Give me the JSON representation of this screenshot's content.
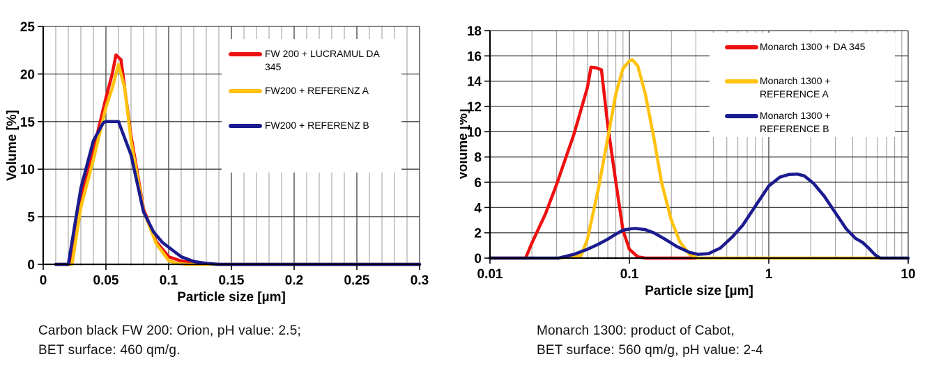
{
  "figures": [
    {
      "id": "fw200",
      "caption_lines": [
        "Carbon black FW 200: Orion, pH value: 2.5;",
        "BET surface: 460 qm/g."
      ]
    },
    {
      "id": "monarch1300",
      "caption_lines": [
        "Monarch 1300: product of Cabot,",
        "BET surface: 560 qm/g, pH value: 2-4"
      ]
    }
  ],
  "colors": {
    "series_red": "#ee1111",
    "series_yellow": "#ffc20e",
    "series_navy": "#1b1b8f",
    "grid_major": "#404040",
    "grid_minor": "#999999",
    "axis": "#000000"
  },
  "chart_data": [
    {
      "type": "line",
      "title": "",
      "xlabel": "Particle size [µm]",
      "ylabel": "Volume [%]",
      "xscale": "linear",
      "xlim": [
        0,
        0.3
      ],
      "ylim": [
        0,
        25
      ],
      "grid": true,
      "legend_position": "upper-right-inside",
      "x_major_ticks": [
        0,
        0.05,
        0.1,
        0.15,
        0.2,
        0.25,
        0.3
      ],
      "x_tick_labels": [
        "0",
        "0.05",
        "0.1",
        "0.15",
        "0.2",
        "0.25",
        "0.3"
      ],
      "x_minor_step": 0.01,
      "y_major_step": 5,
      "series": [
        {
          "name": "FW 200 + LUCRAMUL DA 345",
          "label_lines": [
            "FW 200 + LUCRAMUL DA",
            "345"
          ],
          "color": "#ee1111",
          "points": [
            [
              0.01,
              0
            ],
            [
              0.021,
              0
            ],
            [
              0.03,
              7
            ],
            [
              0.04,
              12
            ],
            [
              0.05,
              17.5
            ],
            [
              0.055,
              20
            ],
            [
              0.058,
              22
            ],
            [
              0.062,
              21.5
            ],
            [
              0.07,
              13.5
            ],
            [
              0.08,
              5.8
            ],
            [
              0.09,
              2.4
            ],
            [
              0.1,
              0.8
            ],
            [
              0.11,
              0.35
            ],
            [
              0.12,
              0.15
            ],
            [
              0.13,
              0.05
            ],
            [
              0.14,
              0
            ],
            [
              0.3,
              0
            ]
          ]
        },
        {
          "name": "FW200 + REFERENZ A",
          "label_lines": [
            "FW200 + REFERENZ A"
          ],
          "color": "#ffc20e",
          "points": [
            [
              0.01,
              0
            ],
            [
              0.023,
              0
            ],
            [
              0.03,
              6
            ],
            [
              0.04,
              11
            ],
            [
              0.05,
              16.5
            ],
            [
              0.055,
              18.5
            ],
            [
              0.06,
              21
            ],
            [
              0.065,
              18.5
            ],
            [
              0.07,
              13
            ],
            [
              0.08,
              5.6
            ],
            [
              0.09,
              2.2
            ],
            [
              0.1,
              0.4
            ],
            [
              0.107,
              0.1
            ],
            [
              0.115,
              0
            ],
            [
              0.3,
              0
            ]
          ]
        },
        {
          "name": "FW200 + REFERENZ B",
          "label_lines": [
            "FW200 + REFERENZ B"
          ],
          "color": "#1b1b8f",
          "points": [
            [
              0.01,
              0
            ],
            [
              0.02,
              0
            ],
            [
              0.03,
              8
            ],
            [
              0.04,
              13
            ],
            [
              0.048,
              14.9
            ],
            [
              0.05,
              15
            ],
            [
              0.06,
              15
            ],
            [
              0.07,
              11.5
            ],
            [
              0.08,
              5.5
            ],
            [
              0.088,
              3.4
            ],
            [
              0.095,
              2.3
            ],
            [
              0.1,
              1.8
            ],
            [
              0.11,
              0.8
            ],
            [
              0.12,
              0.3
            ],
            [
              0.13,
              0.1
            ],
            [
              0.14,
              0
            ],
            [
              0.3,
              0
            ]
          ]
        }
      ]
    },
    {
      "type": "line",
      "title": "",
      "xlabel": "Particle size [µm]",
      "ylabel": "Volume [%]",
      "xscale": "log",
      "xlim": [
        0.01,
        10
      ],
      "ylim": [
        0,
        18
      ],
      "grid": true,
      "legend_position": "upper-right-inside",
      "x_major_ticks": [
        0.01,
        0.1,
        1,
        10
      ],
      "x_tick_labels": [
        "0.01",
        "0.1",
        "1",
        "10"
      ],
      "y_major_step": 2,
      "series": [
        {
          "name": "Monarch 1300 + DA 345",
          "label_lines": [
            "Monarch 1300 + DA 345"
          ],
          "color": "#ee1111",
          "points": [
            [
              0.01,
              0
            ],
            [
              0.018,
              0
            ],
            [
              0.02,
              1.2
            ],
            [
              0.025,
              3.5
            ],
            [
              0.03,
              5.8
            ],
            [
              0.04,
              9.8
            ],
            [
              0.05,
              13.5
            ],
            [
              0.053,
              15.1
            ],
            [
              0.058,
              15.05
            ],
            [
              0.063,
              14.9
            ],
            [
              0.07,
              10.5
            ],
            [
              0.08,
              6
            ],
            [
              0.09,
              2.2
            ],
            [
              0.1,
              0.7
            ],
            [
              0.115,
              0.1
            ],
            [
              0.13,
              0
            ],
            [
              0.3,
              0
            ]
          ]
        },
        {
          "name": "Monarch 1300 + REFERENCE A",
          "label_lines": [
            "Monarch 1300 +",
            "REFERENCE A"
          ],
          "color": "#ffc20e",
          "points": [
            [
              0.031,
              0
            ],
            [
              0.045,
              0.2
            ],
            [
              0.05,
              1.5
            ],
            [
              0.06,
              5.5
            ],
            [
              0.07,
              9.5
            ],
            [
              0.08,
              13
            ],
            [
              0.09,
              15
            ],
            [
              0.1,
              15.6
            ],
            [
              0.105,
              15.7
            ],
            [
              0.115,
              15.2
            ],
            [
              0.13,
              13
            ],
            [
              0.15,
              9.5
            ],
            [
              0.17,
              6
            ],
            [
              0.2,
              3
            ],
            [
              0.23,
              1.3
            ],
            [
              0.27,
              0.3
            ],
            [
              0.31,
              0
            ],
            [
              6.3,
              0
            ]
          ]
        },
        {
          "name": "Monarch 1300 + REFERENCE B",
          "label_lines": [
            "Monarch 1300 +",
            "REFERENCE B"
          ],
          "color": "#1b1b8f",
          "points": [
            [
              0.01,
              0
            ],
            [
              0.031,
              0
            ],
            [
              0.04,
              0.3
            ],
            [
              0.05,
              0.7
            ],
            [
              0.06,
              1.1
            ],
            [
              0.07,
              1.5
            ],
            [
              0.08,
              1.9
            ],
            [
              0.09,
              2.2
            ],
            [
              0.1,
              2.3
            ],
            [
              0.11,
              2.35
            ],
            [
              0.13,
              2.25
            ],
            [
              0.15,
              2.0
            ],
            [
              0.18,
              1.5
            ],
            [
              0.22,
              0.9
            ],
            [
              0.27,
              0.45
            ],
            [
              0.31,
              0.3
            ],
            [
              0.37,
              0.35
            ],
            [
              0.45,
              0.8
            ],
            [
              0.55,
              1.7
            ],
            [
              0.65,
              2.6
            ],
            [
              0.8,
              4.1
            ],
            [
              1.0,
              5.7
            ],
            [
              1.2,
              6.4
            ],
            [
              1.4,
              6.62
            ],
            [
              1.6,
              6.65
            ],
            [
              1.8,
              6.5
            ],
            [
              2.1,
              5.9
            ],
            [
              2.5,
              4.9
            ],
            [
              3.0,
              3.6
            ],
            [
              3.6,
              2.3
            ],
            [
              4.2,
              1.55
            ],
            [
              4.7,
              1.25
            ],
            [
              5.2,
              0.8
            ],
            [
              5.8,
              0.25
            ],
            [
              6.3,
              0
            ],
            [
              10,
              0
            ]
          ]
        }
      ]
    }
  ]
}
